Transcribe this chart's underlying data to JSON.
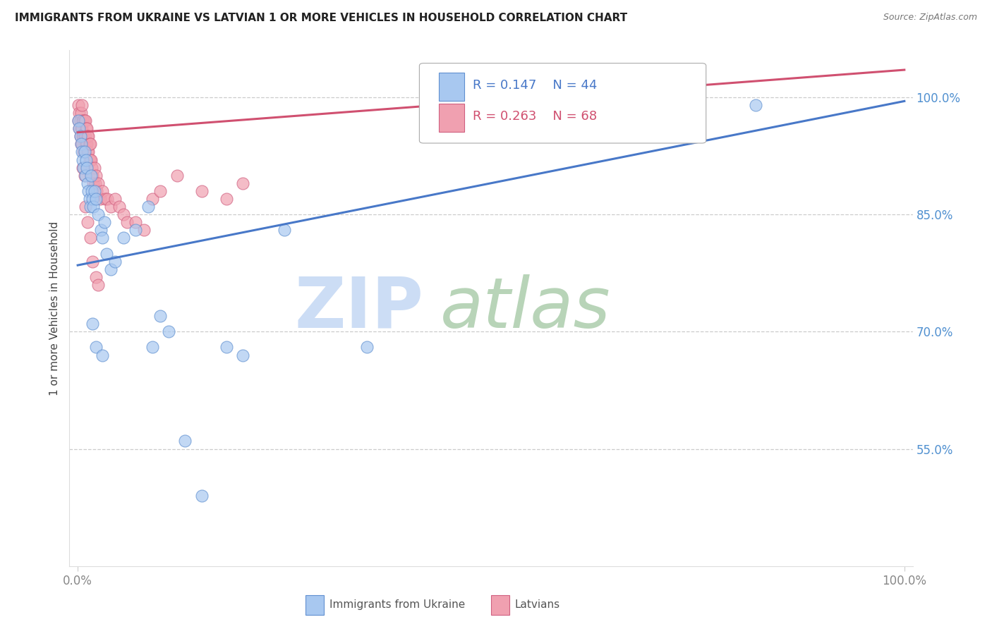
{
  "title": "IMMIGRANTS FROM UKRAINE VS LATVIAN 1 OR MORE VEHICLES IN HOUSEHOLD CORRELATION CHART",
  "source": "Source: ZipAtlas.com",
  "ylabel": "1 or more Vehicles in Household",
  "title_fontsize": 11,
  "legend_r1": "R = 0.147",
  "legend_n1": "N = 44",
  "legend_r2": "R = 0.263",
  "legend_n2": "N = 68",
  "ukraine_fill": "#a8c8f0",
  "ukraine_edge": "#6090d0",
  "latvian_fill": "#f0a0b0",
  "latvian_edge": "#d06080",
  "ukraine_line": "#4878c8",
  "latvian_line": "#d05070",
  "axis_label_color": "#5090d0",
  "tick_color": "#888888",
  "grid_color": "#cccccc",
  "watermark_zip_color": "#ccddf5",
  "watermark_atlas_color": "#b8d4b8",
  "uk_x": [
    0.001,
    0.002,
    0.003,
    0.004,
    0.005,
    0.006,
    0.007,
    0.008,
    0.009,
    0.01,
    0.011,
    0.012,
    0.013,
    0.014,
    0.015,
    0.016,
    0.017,
    0.018,
    0.019,
    0.02,
    0.022,
    0.025,
    0.028,
    0.03,
    0.032,
    0.035,
    0.04,
    0.045,
    0.055,
    0.07,
    0.085,
    0.09,
    0.1,
    0.11,
    0.13,
    0.15,
    0.18,
    0.2,
    0.25,
    0.35,
    0.018,
    0.022,
    0.03,
    0.82
  ],
  "uk_y": [
    0.97,
    0.96,
    0.95,
    0.94,
    0.93,
    0.92,
    0.91,
    0.93,
    0.9,
    0.92,
    0.91,
    0.89,
    0.88,
    0.87,
    0.86,
    0.9,
    0.88,
    0.87,
    0.86,
    0.88,
    0.87,
    0.85,
    0.83,
    0.82,
    0.84,
    0.8,
    0.78,
    0.79,
    0.82,
    0.83,
    0.86,
    0.68,
    0.72,
    0.7,
    0.56,
    0.49,
    0.68,
    0.67,
    0.83,
    0.68,
    0.71,
    0.68,
    0.67,
    0.99
  ],
  "lv_x": [
    0.001,
    0.001,
    0.002,
    0.002,
    0.003,
    0.003,
    0.004,
    0.004,
    0.004,
    0.005,
    0.005,
    0.005,
    0.006,
    0.006,
    0.007,
    0.007,
    0.007,
    0.008,
    0.008,
    0.008,
    0.009,
    0.009,
    0.01,
    0.01,
    0.011,
    0.011,
    0.012,
    0.012,
    0.013,
    0.013,
    0.014,
    0.014,
    0.015,
    0.015,
    0.016,
    0.017,
    0.018,
    0.019,
    0.02,
    0.021,
    0.022,
    0.023,
    0.025,
    0.027,
    0.03,
    0.033,
    0.036,
    0.04,
    0.045,
    0.05,
    0.055,
    0.06,
    0.07,
    0.08,
    0.09,
    0.1,
    0.12,
    0.15,
    0.18,
    0.2,
    0.006,
    0.008,
    0.009,
    0.012,
    0.015,
    0.018,
    0.022,
    0.025
  ],
  "lv_y": [
    0.99,
    0.97,
    0.98,
    0.96,
    0.97,
    0.95,
    0.96,
    0.94,
    0.98,
    0.96,
    0.94,
    0.99,
    0.97,
    0.95,
    0.97,
    0.95,
    0.93,
    0.97,
    0.95,
    0.93,
    0.97,
    0.95,
    0.96,
    0.94,
    0.96,
    0.94,
    0.95,
    0.93,
    0.95,
    0.93,
    0.94,
    0.92,
    0.94,
    0.92,
    0.92,
    0.91,
    0.9,
    0.89,
    0.91,
    0.89,
    0.9,
    0.88,
    0.89,
    0.87,
    0.88,
    0.87,
    0.87,
    0.86,
    0.87,
    0.86,
    0.85,
    0.84,
    0.84,
    0.83,
    0.87,
    0.88,
    0.9,
    0.88,
    0.87,
    0.89,
    0.91,
    0.9,
    0.86,
    0.84,
    0.82,
    0.79,
    0.77,
    0.76
  ],
  "xlim": [
    0.0,
    1.0
  ],
  "ylim": [
    0.4,
    1.06
  ],
  "yticks": [
    0.55,
    0.7,
    0.85,
    1.0
  ],
  "ytick_labels": [
    "55.0%",
    "70.0%",
    "85.0%",
    "100.0%"
  ],
  "xtick_labels": [
    "0.0%",
    "100.0%"
  ],
  "legend_ukraine_label": "Immigrants from Ukraine",
  "legend_latvian_label": "Latvians"
}
